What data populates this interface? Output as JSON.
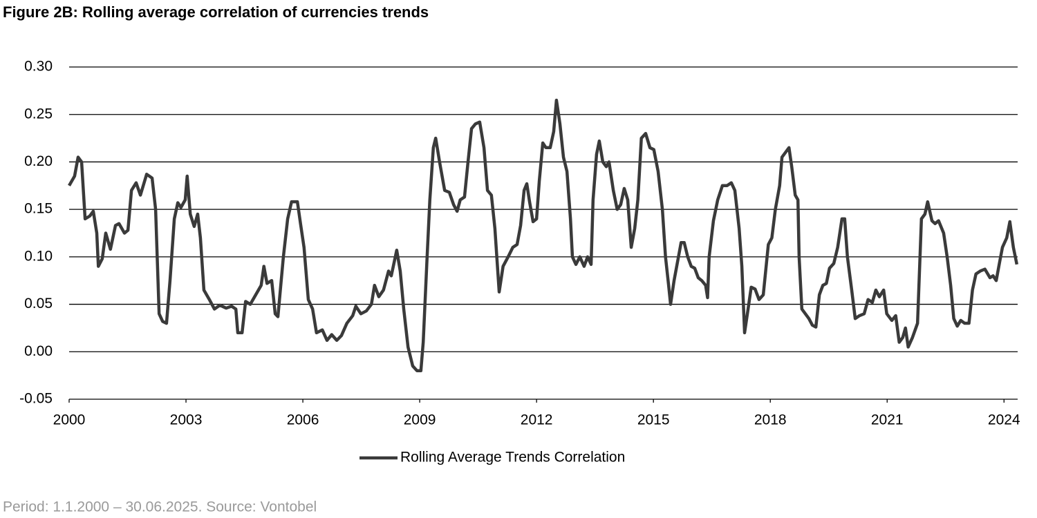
{
  "chart_data": {
    "type": "line",
    "title": "Figure 2B: Rolling average correlation of currencies trends",
    "source": "Period: 1.1.2000 – 30.06.2025. Source: Vontobel",
    "xlim": [
      2000,
      2024.35
    ],
    "xticks": [
      2000,
      2003,
      2006,
      2009,
      2012,
      2015,
      2018,
      2021,
      2024
    ],
    "ylim": [
      -0.05,
      0.3
    ],
    "yticks": [
      -0.05,
      {
        "value": 0,
        "label": "0.00"
      },
      0.05,
      {
        "value": 0.1,
        "label": "0.10"
      },
      0.15,
      {
        "value": 0.2,
        "label": "0.20"
      },
      0.25,
      {
        "value": 0.3,
        "label": "0.30"
      }
    ],
    "grid": true,
    "legend": "bottom",
    "x": [
      2000.0,
      2000.14,
      2000.23,
      2000.32,
      2000.41,
      2000.53,
      2000.62,
      2000.71,
      2000.75,
      2000.85,
      2000.94,
      2001.06,
      2001.19,
      2001.28,
      2001.42,
      2001.51,
      2001.6,
      2001.72,
      2001.83,
      2001.99,
      2002.13,
      2002.22,
      2002.31,
      2002.4,
      2002.5,
      2002.59,
      2002.7,
      2002.79,
      2002.87,
      2002.98,
      2003.03,
      2003.11,
      2003.21,
      2003.3,
      2003.37,
      2003.46,
      2003.6,
      2003.73,
      2003.87,
      2004.03,
      2004.17,
      2004.28,
      2004.33,
      2004.44,
      2004.53,
      2004.65,
      2004.79,
      2004.93,
      2005.0,
      2005.08,
      2005.2,
      2005.29,
      2005.36,
      2005.5,
      2005.61,
      2005.71,
      2005.86,
      2005.94,
      2006.03,
      2006.14,
      2006.25,
      2006.35,
      2006.5,
      2006.62,
      2006.74,
      2006.87,
      2006.99,
      2007.13,
      2007.28,
      2007.36,
      2007.49,
      2007.63,
      2007.76,
      2007.84,
      2007.95,
      2008.07,
      2008.2,
      2008.27,
      2008.41,
      2008.5,
      2008.59,
      2008.7,
      2008.82,
      2008.93,
      2009.03,
      2009.09,
      2009.19,
      2009.26,
      2009.35,
      2009.41,
      2009.51,
      2009.64,
      2009.76,
      2009.87,
      2009.96,
      2010.04,
      2010.15,
      2010.24,
      2010.33,
      2010.43,
      2010.54,
      2010.65,
      2010.74,
      2010.84,
      2010.93,
      2011.04,
      2011.14,
      2011.27,
      2011.39,
      2011.5,
      2011.59,
      2011.68,
      2011.75,
      2011.82,
      2011.91,
      2012.0,
      2012.07,
      2012.16,
      2012.24,
      2012.35,
      2012.44,
      2012.51,
      2012.6,
      2012.69,
      2012.78,
      2012.87,
      2012.92,
      2013.01,
      2013.11,
      2013.22,
      2013.31,
      2013.4,
      2013.45,
      2013.54,
      2013.61,
      2013.7,
      2013.79,
      2013.86,
      2013.97,
      2014.07,
      2014.16,
      2014.25,
      2014.34,
      2014.43,
      2014.52,
      2014.6,
      2014.69,
      2014.8,
      2014.91,
      2015.01,
      2015.12,
      2015.23,
      2015.31,
      2015.39,
      2015.44,
      2015.53,
      2015.62,
      2015.71,
      2015.79,
      2015.88,
      2015.97,
      2016.06,
      2016.15,
      2016.24,
      2016.34,
      2016.39,
      2016.43,
      2016.54,
      2016.65,
      2016.77,
      2016.89,
      2017.0,
      2017.09,
      2017.2,
      2017.27,
      2017.34,
      2017.43,
      2017.51,
      2017.61,
      2017.71,
      2017.82,
      2017.95,
      2018.04,
      2018.13,
      2018.24,
      2018.3,
      2018.39,
      2018.48,
      2018.55,
      2018.64,
      2018.71,
      2018.74,
      2018.81,
      2018.9,
      2018.99,
      2019.08,
      2019.17,
      2019.26,
      2019.35,
      2019.44,
      2019.52,
      2019.63,
      2019.73,
      2019.84,
      2019.91,
      2019.98,
      2020.09,
      2020.18,
      2020.29,
      2020.41,
      2020.51,
      2020.62,
      2020.71,
      2020.8,
      2020.91,
      2020.99,
      2021.12,
      2021.22,
      2021.31,
      2021.4,
      2021.47,
      2021.54,
      2021.65,
      2021.78,
      2021.88,
      2021.97,
      2022.04,
      2022.15,
      2022.23,
      2022.32,
      2022.45,
      2022.54,
      2022.63,
      2022.71,
      2022.8,
      2022.89,
      2022.99,
      2023.1,
      2023.19,
      2023.28,
      2023.39,
      2023.51,
      2023.64,
      2023.72,
      2023.8,
      2023.89,
      2023.96,
      2024.07,
      2024.15,
      2024.24,
      2024.33
    ],
    "series": [
      {
        "name": "Rolling Average Trends Correlation",
        "color": "#3a3a3a",
        "values": [
          0.175,
          0.185,
          0.205,
          0.2,
          0.14,
          0.143,
          0.148,
          0.125,
          0.09,
          0.098,
          0.125,
          0.108,
          0.133,
          0.135,
          0.125,
          0.128,
          0.17,
          0.178,
          0.165,
          0.187,
          0.183,
          0.15,
          0.04,
          0.032,
          0.03,
          0.075,
          0.14,
          0.157,
          0.152,
          0.16,
          0.185,
          0.145,
          0.132,
          0.145,
          0.12,
          0.065,
          0.055,
          0.045,
          0.049,
          0.046,
          0.048,
          0.045,
          0.02,
          0.02,
          0.053,
          0.05,
          0.06,
          0.07,
          0.09,
          0.072,
          0.075,
          0.04,
          0.037,
          0.1,
          0.14,
          0.158,
          0.158,
          0.135,
          0.11,
          0.055,
          0.045,
          0.02,
          0.023,
          0.012,
          0.018,
          0.012,
          0.017,
          0.03,
          0.038,
          0.048,
          0.04,
          0.043,
          0.05,
          0.07,
          0.058,
          0.065,
          0.085,
          0.08,
          0.107,
          0.085,
          0.045,
          0.005,
          -0.015,
          -0.02,
          -0.02,
          0.01,
          0.1,
          0.16,
          0.215,
          0.225,
          0.2,
          0.17,
          0.168,
          0.155,
          0.148,
          0.16,
          0.163,
          0.2,
          0.235,
          0.24,
          0.242,
          0.215,
          0.17,
          0.165,
          0.13,
          0.063,
          0.09,
          0.1,
          0.11,
          0.113,
          0.133,
          0.17,
          0.177,
          0.158,
          0.137,
          0.14,
          0.18,
          0.22,
          0.215,
          0.215,
          0.232,
          0.265,
          0.24,
          0.205,
          0.19,
          0.14,
          0.1,
          0.092,
          0.1,
          0.09,
          0.1,
          0.092,
          0.16,
          0.208,
          0.222,
          0.2,
          0.195,
          0.2,
          0.17,
          0.15,
          0.155,
          0.172,
          0.16,
          0.11,
          0.13,
          0.16,
          0.225,
          0.23,
          0.215,
          0.213,
          0.19,
          0.15,
          0.1,
          0.07,
          0.05,
          0.075,
          0.095,
          0.115,
          0.115,
          0.1,
          0.09,
          0.088,
          0.078,
          0.075,
          0.07,
          0.057,
          0.1,
          0.138,
          0.16,
          0.175,
          0.175,
          0.178,
          0.17,
          0.13,
          0.09,
          0.02,
          0.045,
          0.068,
          0.066,
          0.055,
          0.06,
          0.113,
          0.12,
          0.15,
          0.175,
          0.205,
          0.21,
          0.215,
          0.195,
          0.165,
          0.16,
          0.1,
          0.045,
          0.04,
          0.035,
          0.028,
          0.026,
          0.06,
          0.07,
          0.072,
          0.088,
          0.093,
          0.11,
          0.14,
          0.14,
          0.1,
          0.065,
          0.035,
          0.038,
          0.04,
          0.055,
          0.052,
          0.065,
          0.058,
          0.065,
          0.04,
          0.033,
          0.038,
          0.01,
          0.015,
          0.025,
          0.005,
          0.015,
          0.03,
          0.14,
          0.145,
          0.158,
          0.138,
          0.135,
          0.138,
          0.125,
          0.1,
          0.07,
          0.035,
          0.027,
          0.033,
          0.03,
          0.03,
          0.065,
          0.082,
          0.085,
          0.087,
          0.078,
          0.08,
          0.075,
          0.095,
          0.11,
          0.12,
          0.137,
          0.11,
          0.092
        ]
      }
    ]
  }
}
